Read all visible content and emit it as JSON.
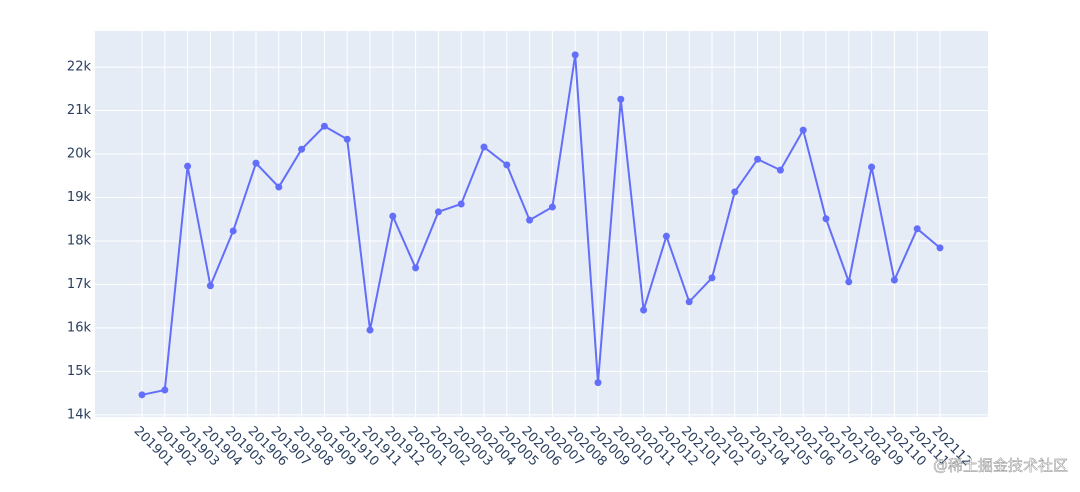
{
  "chart_data": {
    "type": "line",
    "categories": [
      "201901",
      "201902",
      "201903",
      "201904",
      "201905",
      "201906",
      "201907",
      "201908",
      "201909",
      "201910",
      "201911",
      "201912",
      "202001",
      "202002",
      "202003",
      "202004",
      "202005",
      "202006",
      "202007",
      "202008",
      "202009",
      "202010",
      "202011",
      "202012",
      "202101",
      "202102",
      "202103",
      "202104",
      "202105",
      "202106",
      "202107",
      "202108",
      "202109",
      "202110",
      "202111",
      "202112"
    ],
    "series": [
      {
        "color": "#636efa",
        "values": [
          14460,
          14570,
          19720,
          16970,
          18230,
          19790,
          19240,
          20110,
          20640,
          20340,
          15950,
          18570,
          17380,
          18670,
          18850,
          20160,
          19750,
          18480,
          18780,
          22280,
          14740,
          21260,
          16410,
          18110,
          16600,
          17150,
          19130,
          19880,
          19630,
          20550,
          18510,
          17060,
          19700,
          17100,
          18280,
          17840
        ]
      }
    ],
    "ylim": [
      13950,
      22830
    ],
    "yticks": [
      {
        "value": 14000,
        "label": "14k"
      },
      {
        "value": 15000,
        "label": "15k"
      },
      {
        "value": 16000,
        "label": "16k"
      },
      {
        "value": 17000,
        "label": "17k"
      },
      {
        "value": 18000,
        "label": "18k"
      },
      {
        "value": 19000,
        "label": "19k"
      },
      {
        "value": 20000,
        "label": "20k"
      },
      {
        "value": 21000,
        "label": "21k"
      },
      {
        "value": 22000,
        "label": "22k"
      }
    ],
    "grid": true
  },
  "watermark": "@稀土掘金技术社区"
}
